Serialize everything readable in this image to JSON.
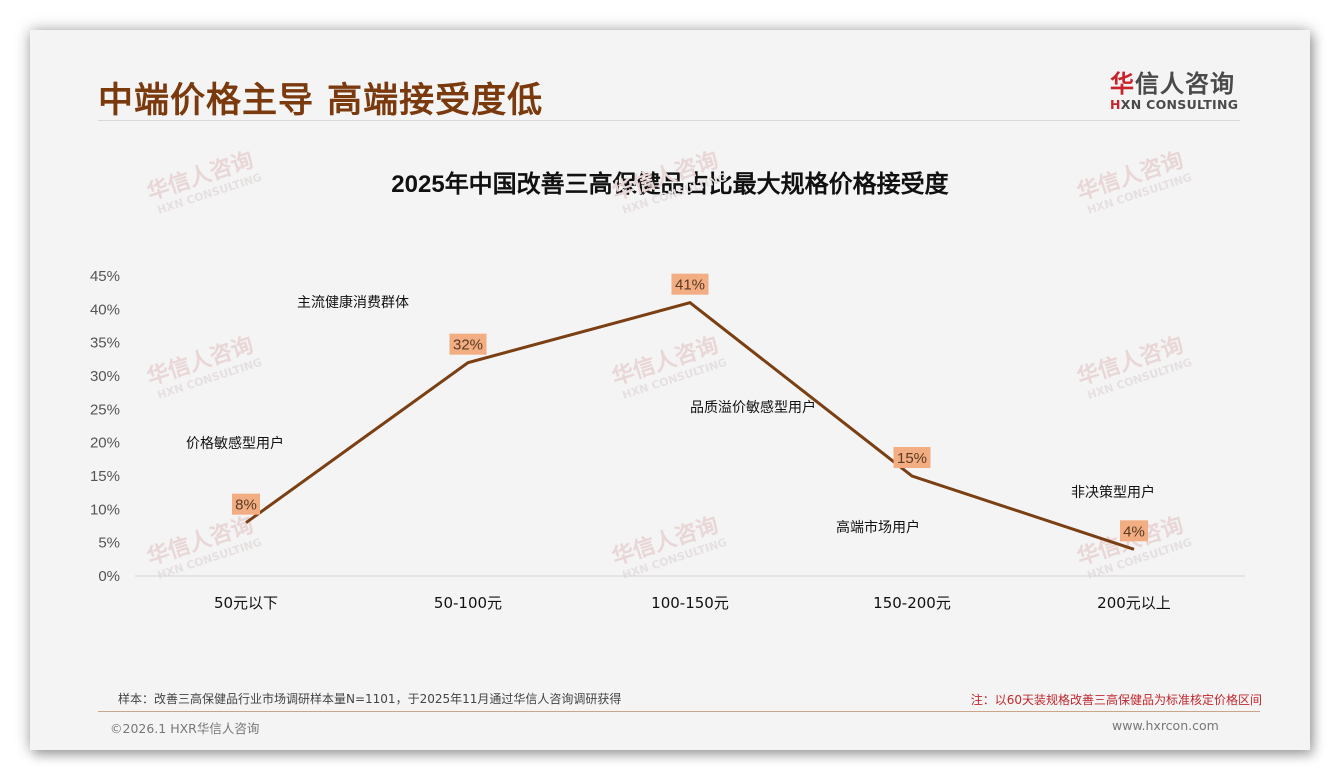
{
  "header": {
    "title": "中端价格主导 高端接受度低",
    "logo_cn_first": "华",
    "logo_cn_rest": "信人咨询",
    "logo_en_first": "H",
    "logo_en_rest": "XN CONSULTING"
  },
  "chart": {
    "title": "2025年中国改善三高保健品占比最大规格价格接受度"
  },
  "chart_data": {
    "type": "line",
    "title": "2025年中国改善三高保健品占比最大规格价格接受度",
    "xlabel": "",
    "ylabel": "",
    "categories": [
      "50元以下",
      "50-100元",
      "100-150元",
      "150-200元",
      "200元以上"
    ],
    "values": [
      8,
      32,
      41,
      15,
      4
    ],
    "data_labels": [
      "8%",
      "32%",
      "41%",
      "15%",
      "4%"
    ],
    "ylim": [
      0,
      45
    ],
    "yticks": [
      "0%",
      "5%",
      "10%",
      "15%",
      "20%",
      "25%",
      "30%",
      "35%",
      "40%",
      "45%"
    ],
    "grid": false,
    "legend": null,
    "line_color": "#7b3f14",
    "label_bg_color": "#f2ad82",
    "annotations": [
      {
        "text": "价格敏感型用户",
        "near": "50元以下"
      },
      {
        "text": "主流健康消费群体",
        "near": "50-100元"
      },
      {
        "text": "品质溢价敏感型用户",
        "near": "100-150元"
      },
      {
        "text": "高端市场用户",
        "near": "150-200元"
      },
      {
        "text": "非决策型用户",
        "near": "200元以上"
      }
    ]
  },
  "watermark": {
    "cn": "华信人咨询",
    "en": "HXN CONSULTING"
  },
  "footer": {
    "sample_note": "样本：改善三高保健品行业市场调研样本量N=1101，于2025年11月通过华信人咨询调研获得",
    "price_note": "注：以60天装规格改善三高保健品为标准核定价格区间",
    "copyright": "©2026.1 HXR华信人咨询",
    "website": "www.hxrcon.com"
  }
}
